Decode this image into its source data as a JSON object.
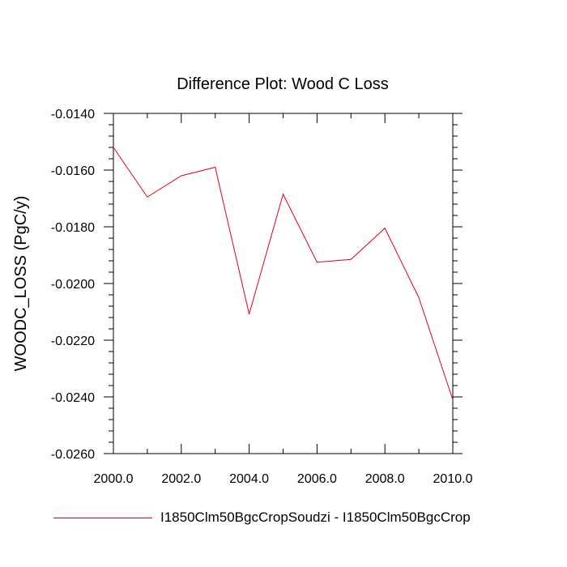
{
  "chart_data": {
    "type": "line",
    "title": "Difference Plot: Wood C Loss",
    "xlabel": "",
    "ylabel": "WOODC_LOSS  (PgC/y)",
    "xlim": [
      2000.0,
      2010.0
    ],
    "ylim": [
      -0.026,
      -0.014
    ],
    "x_ticks": [
      "2000.0",
      "2002.0",
      "2004.0",
      "2006.0",
      "2008.0",
      "2010.0"
    ],
    "y_ticks": [
      "-0.0140",
      "-0.0160",
      "-0.0180",
      "-0.0200",
      "-0.0220",
      "-0.0240",
      "-0.0260"
    ],
    "grid": false,
    "legend_position": "bottom",
    "series": [
      {
        "name": "I1850Clm50BgcCropSoudzi - I1850Clm50BgcCrop",
        "color": "#e0001a",
        "x": [
          2000,
          2001,
          2002,
          2003,
          2004,
          2005,
          2006,
          2007,
          2008,
          2009,
          2010
        ],
        "y": [
          -0.0152,
          -0.01695,
          -0.0162,
          -0.0159,
          -0.02108,
          -0.01685,
          -0.01925,
          -0.01915,
          -0.01805,
          -0.0205,
          -0.0241
        ]
      }
    ]
  }
}
